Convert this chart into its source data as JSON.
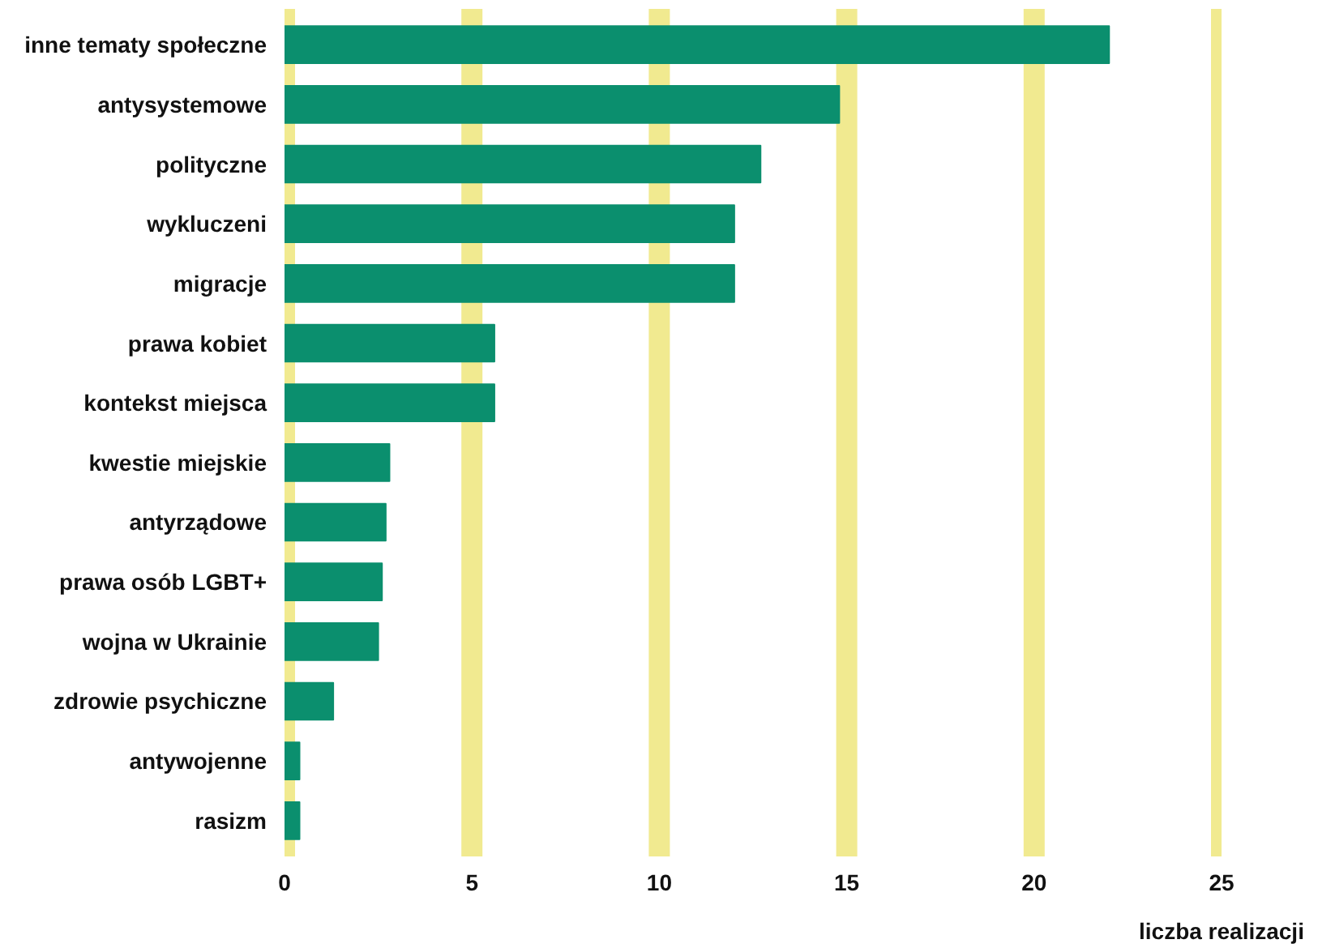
{
  "chart_data": {
    "type": "bar",
    "orientation": "horizontal",
    "xlabel": "liczba realizacji",
    "categories": [
      "inne tematy społeczne",
      "antysystemowe",
      "polityczne",
      "wykluczeni",
      "migracje",
      "prawa kobiet",
      "kontekst miejsca",
      "kwestie miejskie",
      "antyrządowe",
      "prawa osób LGBT+",
      "wojna w Ukrainie",
      "zdrowie psychiczne",
      "antywojenne",
      "rasizm"
    ],
    "values": [
      22,
      14.8,
      12.7,
      12,
      12,
      5.6,
      5.6,
      2.8,
      2.7,
      2.6,
      2.5,
      1.3,
      0.4,
      0.4
    ],
    "color": "#0b8f6e",
    "xlim": [
      0,
      25
    ],
    "xticks": [
      0,
      5,
      10,
      15,
      20,
      25
    ],
    "grid": "x"
  }
}
